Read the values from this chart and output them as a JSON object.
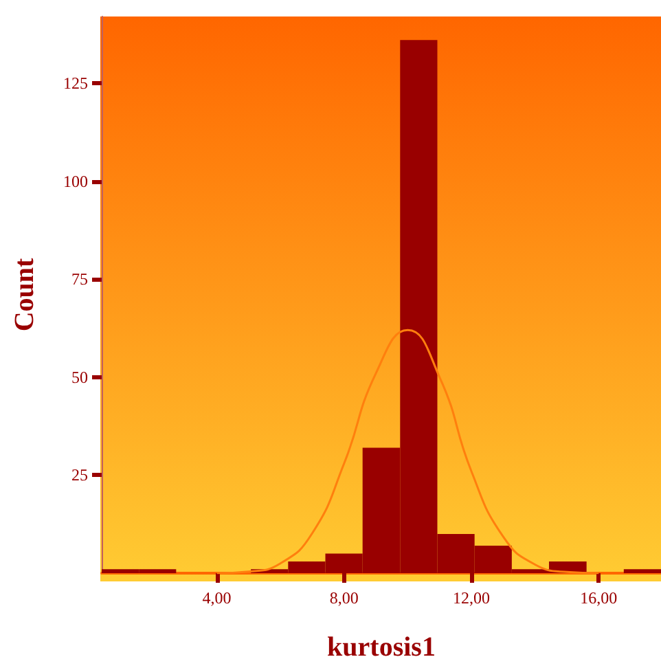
{
  "chart_data": {
    "type": "histogram",
    "xlabel": "kurtosis1",
    "ylabel": "Count",
    "bins": [
      0.38,
      1.55,
      2.72,
      3.9,
      5.07,
      6.24,
      7.41,
      8.58,
      9.76,
      10.93,
      12.1,
      13.27,
      14.44,
      15.62,
      16.79,
      17.96
    ],
    "values": [
      1,
      1,
      0,
      0,
      1,
      3,
      5,
      32,
      136,
      10,
      7,
      1,
      3,
      0,
      1
    ],
    "color": "#990000",
    "series": [
      {
        "type": "line",
        "color": "#ff7f0e",
        "x": [
          4,
          5,
          6,
          7,
          8,
          9,
          10,
          11,
          12,
          13,
          14,
          15,
          16
        ],
        "values": [
          0,
          0.4,
          2.5,
          10.2,
          28,
          51,
          62,
          50,
          26,
          9.3,
          2.2,
          0.3,
          0
        ]
      }
    ],
    "xlim": [
      0.38,
      17.96
    ],
    "ylim": [
      0,
      142
    ],
    "xticks": [
      {
        "value": 4,
        "label": "4,00"
      },
      {
        "value": 8,
        "label": "8,00"
      },
      {
        "value": 12,
        "label": "12,00"
      },
      {
        "value": 16,
        "label": "16,00"
      }
    ],
    "yticks": [
      25,
      50,
      75,
      100,
      125
    ],
    "grid": false,
    "marker": "none"
  }
}
